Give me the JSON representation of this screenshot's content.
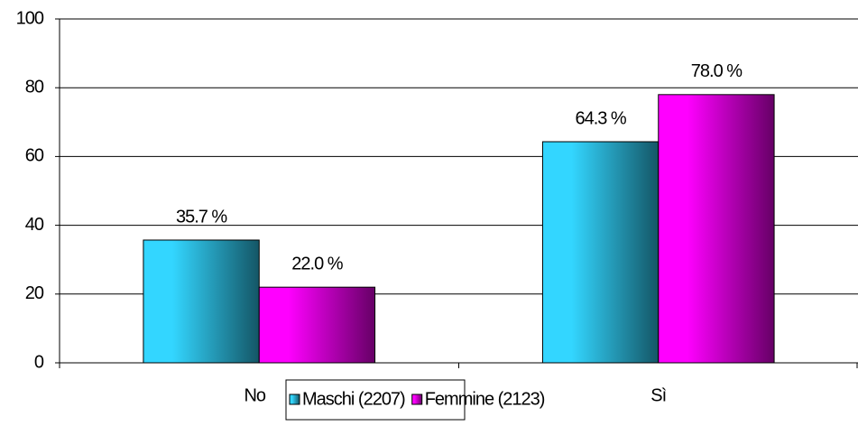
{
  "chart_data": {
    "type": "bar",
    "categories": [
      "No",
      "Sì"
    ],
    "series": [
      {
        "name": "Maschi (2207)",
        "color": "#33d6ff",
        "values": [
          35.7,
          64.3
        ],
        "value_labels": [
          "35.7 %",
          "64.3 %"
        ]
      },
      {
        "name": "Femmine (2123)",
        "color": "#ff00ff",
        "values": [
          22.0,
          78.0
        ],
        "value_labels": [
          "22.0 %",
          "78.0 %"
        ]
      }
    ],
    "ylim": [
      0,
      100
    ],
    "yticks": [
      0,
      20,
      40,
      60,
      80,
      100
    ],
    "grid": true,
    "legend": "bottom"
  }
}
